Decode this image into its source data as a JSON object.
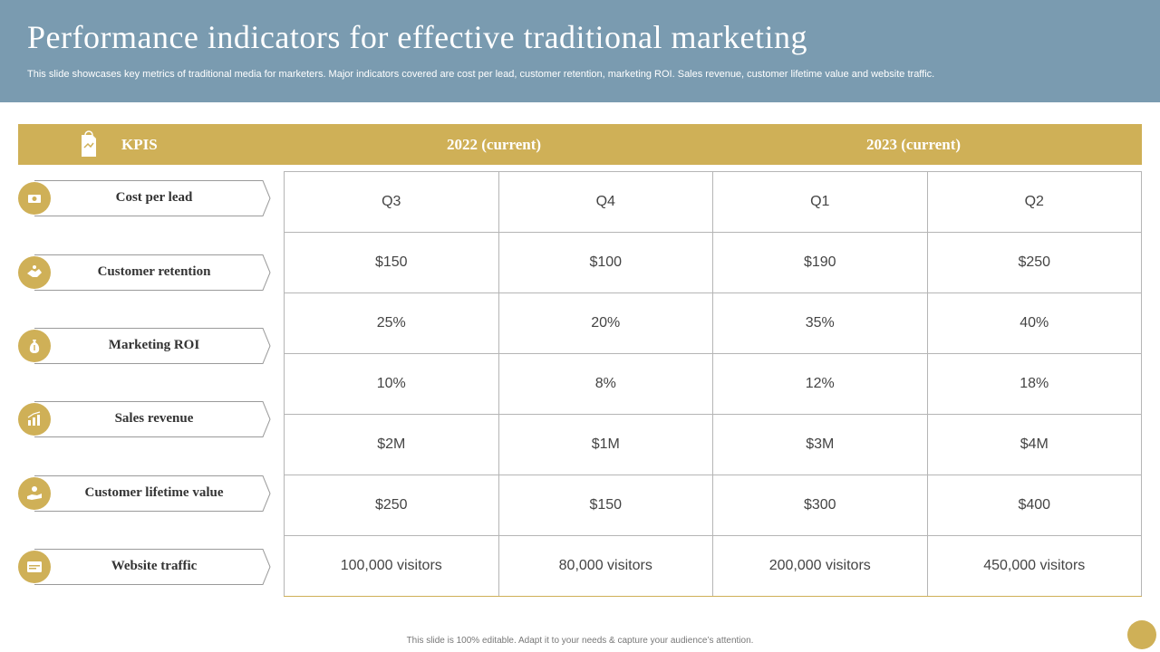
{
  "header": {
    "title": "Performance indicators for effective traditional marketing",
    "subtitle": "This slide showcases key metrics of traditional media for marketers. Major indicators covered are cost per lead, customer retention, marketing ROI. Sales revenue, customer lifetime value and website traffic."
  },
  "columns": {
    "kpis": "KPIS",
    "year_2022": "2022 (current)",
    "year_2023": "2023 (current)"
  },
  "quarters": [
    "Q3",
    "Q4",
    "Q1",
    "Q2"
  ],
  "kpis": [
    {
      "label": "Cost per lead",
      "icon": "money-icon",
      "values": [
        "$150",
        "$100",
        "$190",
        "$250"
      ]
    },
    {
      "label": "Customer retention",
      "icon": "handshake-icon",
      "values": [
        "25%",
        "20%",
        "35%",
        "40%"
      ]
    },
    {
      "label": "Marketing ROI",
      "icon": "money-bag-icon",
      "values": [
        "10%",
        "8%",
        "12%",
        "18%"
      ]
    },
    {
      "label": "Sales revenue",
      "icon": "chart-icon",
      "values": [
        "$2M",
        "$1M",
        "$3M",
        "$4M"
      ]
    },
    {
      "label": "Customer lifetime value",
      "icon": "hand-coin-icon",
      "values": [
        "$250",
        "$150",
        "$300",
        "$400"
      ]
    },
    {
      "label": "Website traffic",
      "icon": "browser-icon",
      "values": [
        "100,000 visitors",
        "80,000 visitors",
        "200,000 visitors",
        "450,000 visitors"
      ]
    }
  ],
  "footer": "This slide is 100% editable.  Adapt it to your needs & capture your audience’s attention.",
  "colors": {
    "header_bg": "#7a9bb0",
    "accent": "#cfb057",
    "border": "#b5b5b5"
  }
}
